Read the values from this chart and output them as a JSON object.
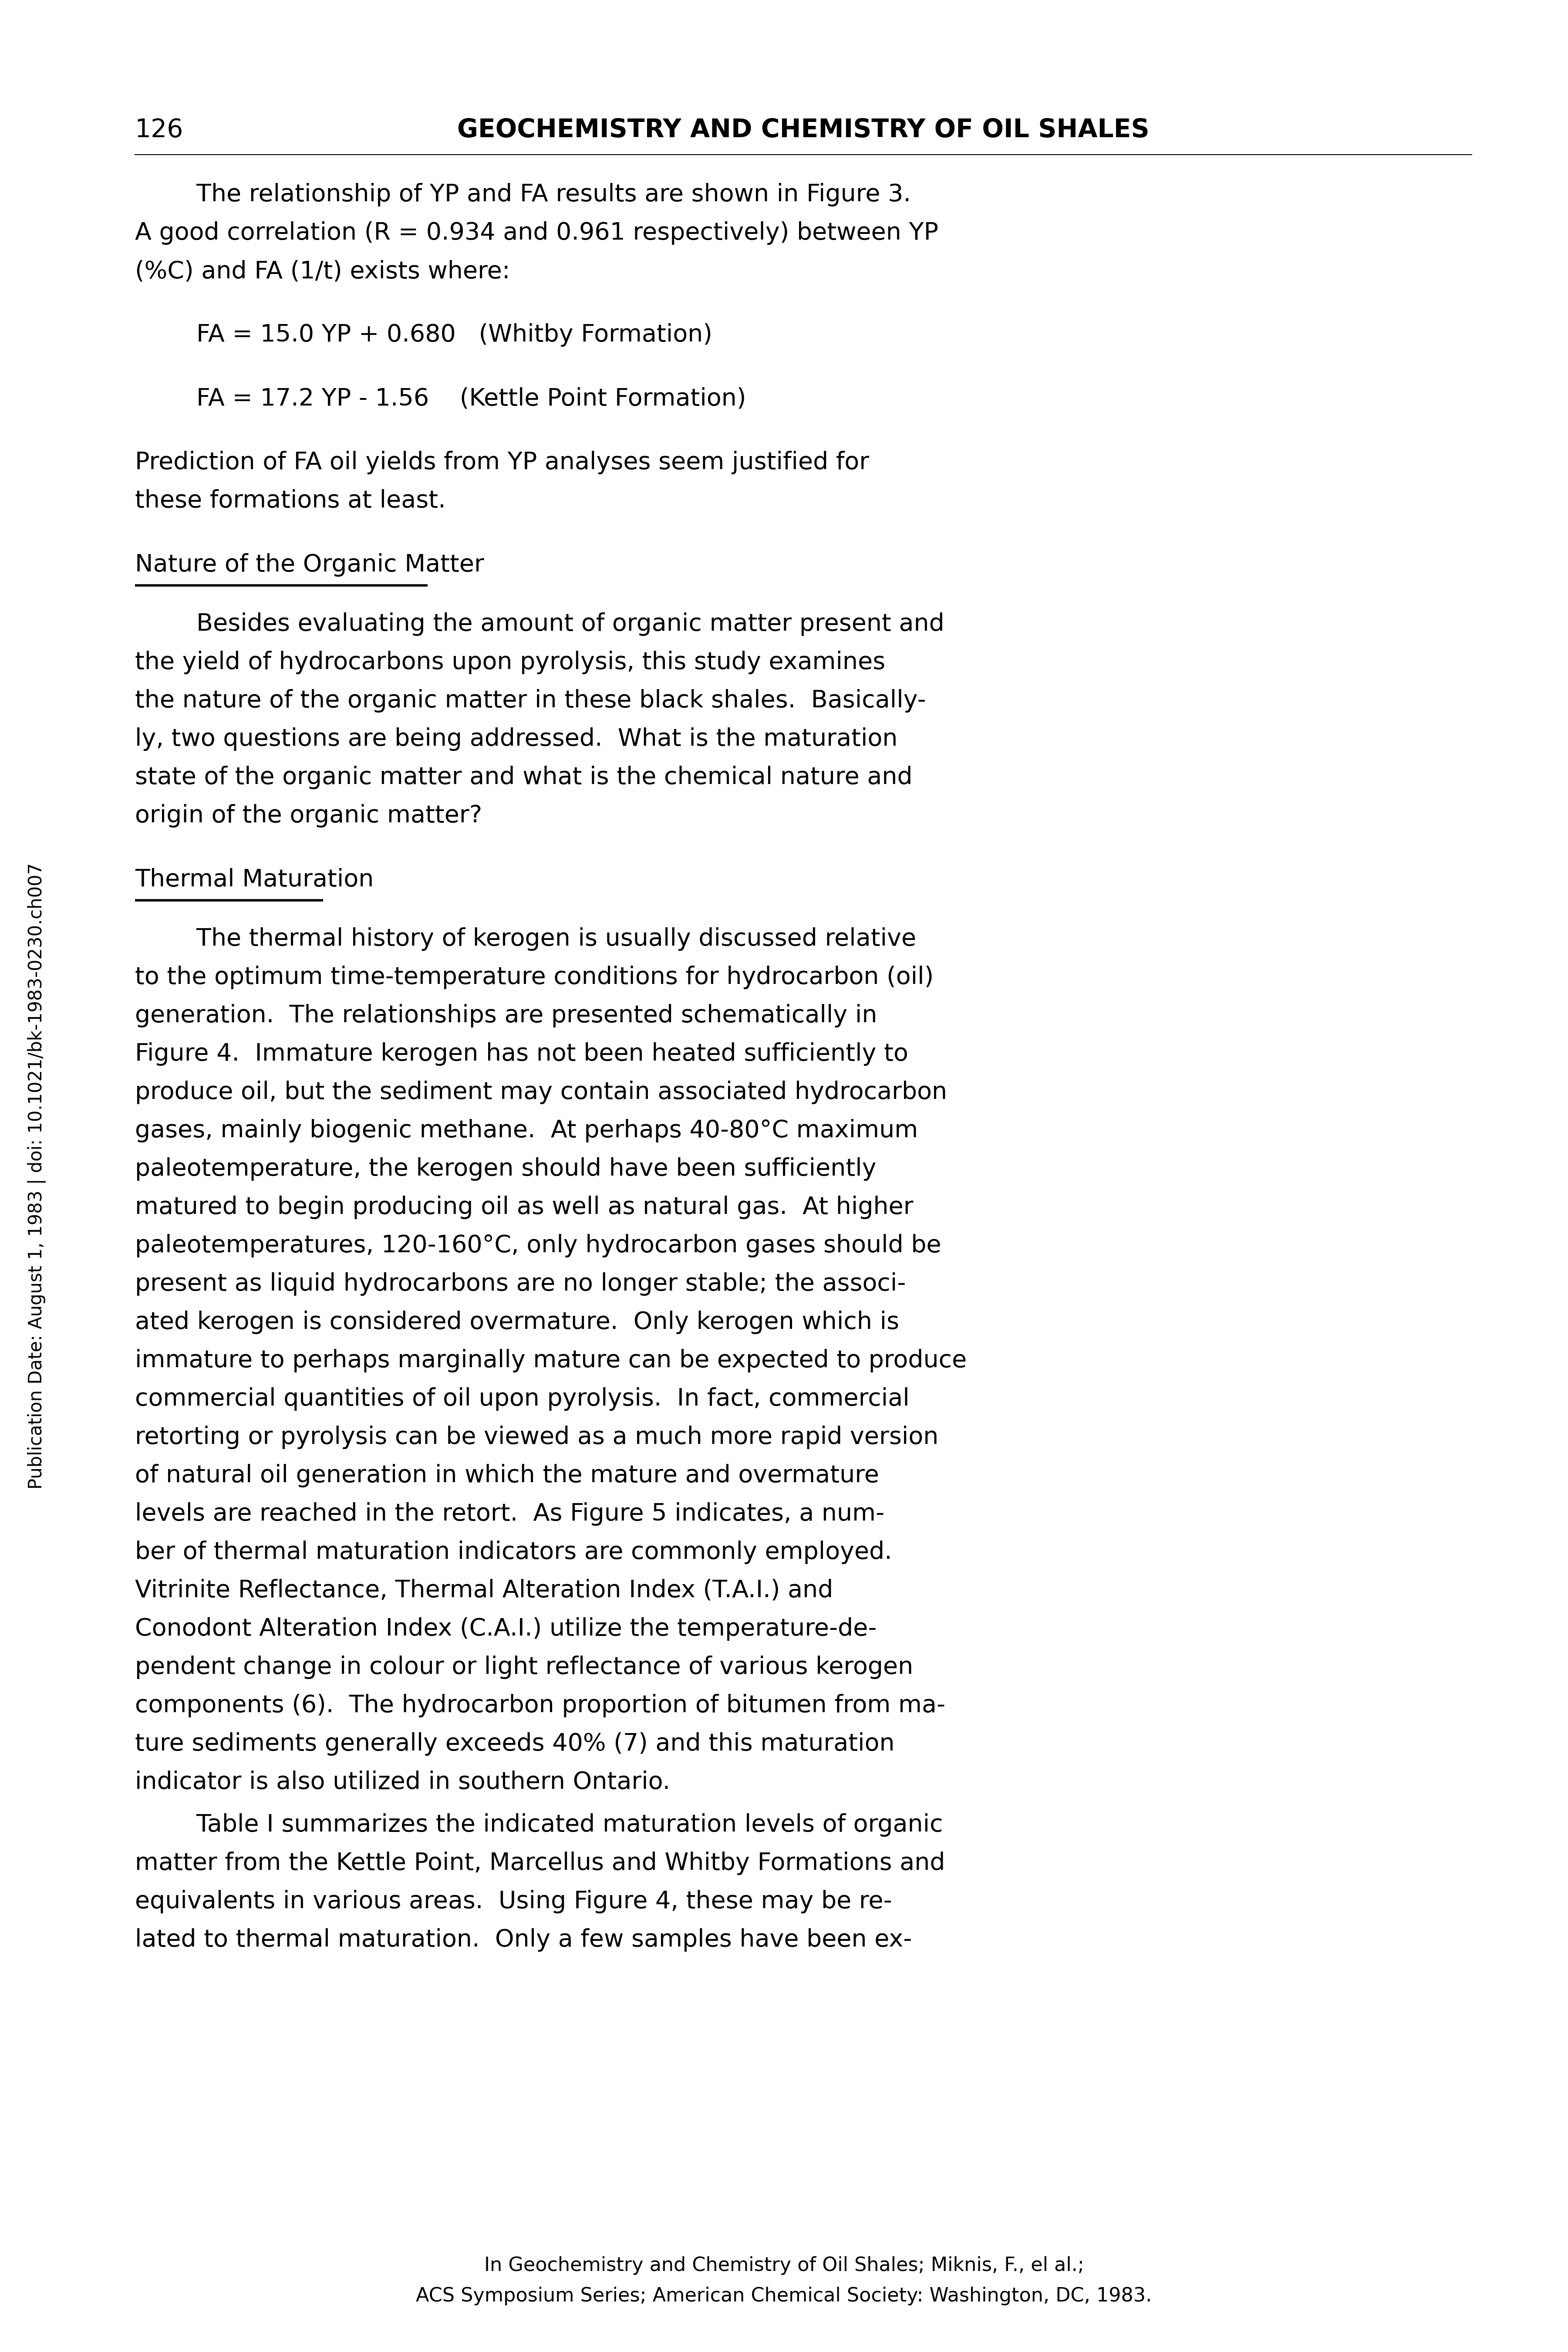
{
  "bg_color": "#ffffff",
  "text_color": "#000000",
  "page_number": "126",
  "header_title": "GEOCHEMISTRY AND CHEMISTRY OF OIL SHALES",
  "sidebar_text": "Publication Date: August 1, 1983 | doi: 10.1021/bk-1983-0230.ch007",
  "paragraphs": [
    {
      "type": "indent_paragraph",
      "lines": [
        "        The relationship of YP and FA results are shown in Figure 3.",
        "A good correlation (R = 0.934 and 0.961 respectively) between YP",
        "(%C) and FA (1/t) exists where:"
      ]
    },
    {
      "type": "blank"
    },
    {
      "type": "equation",
      "lines": [
        "        FA = 15.0 YP + 0.680   (Whitby Formation)"
      ]
    },
    {
      "type": "blank"
    },
    {
      "type": "equation",
      "lines": [
        "        FA = 17.2 YP - 1.56    (Kettle Point Formation)"
      ]
    },
    {
      "type": "blank"
    },
    {
      "type": "body",
      "lines": [
        "Prediction of FA oil yields from YP analyses seem justified for",
        "these formations at least."
      ]
    },
    {
      "type": "blank"
    },
    {
      "type": "section_heading",
      "text": "Nature of the Organic Matter"
    },
    {
      "type": "blank"
    },
    {
      "type": "indent_paragraph",
      "lines": [
        "        Besides evaluating the amount of organic matter present and",
        "the yield of hydrocarbons upon pyrolysis, this study examines",
        "the nature of the organic matter in these black shales.  Basically-",
        "ly, two questions are being addressed.  What is the maturation",
        "state of the organic matter and what is the chemical nature and",
        "origin of the organic matter?"
      ]
    },
    {
      "type": "blank"
    },
    {
      "type": "section_heading",
      "text": "Thermal Maturation"
    },
    {
      "type": "blank"
    },
    {
      "type": "indent_paragraph",
      "lines": [
        "        The thermal history of kerogen is usually discussed relative",
        "to the optimum time-temperature conditions for hydrocarbon (oil)",
        "generation.  The relationships are presented schematically in",
        "Figure 4.  Immature kerogen has not been heated sufficiently to",
        "produce oil, but the sediment may contain associated hydrocarbon",
        "gases, mainly biogenic methane.  At perhaps 40-80°C maximum",
        "paleotemperature, the kerogen should have been sufficiently",
        "matured to begin producing oil as well as natural gas.  At higher",
        "paleotemperatures, 120-160°C, only hydrocarbon gases should be",
        "present as liquid hydrocarbons are no longer stable; the associ-",
        "ated kerogen is considered overmature.  Only kerogen which is",
        "immature to perhaps marginally mature can be expected to produce",
        "commercial quantities of oil upon pyrolysis.  In fact, commercial",
        "retorting or pyrolysis can be viewed as a much more rapid version",
        "of natural oil generation in which the mature and overmature",
        "levels are reached in the retort.  As Figure 5 indicates, a num-",
        "ber of thermal maturation indicators are commonly employed.",
        "Vitrinite Reflectance, Thermal Alteration Index (T.A.I.) and",
        "Conodont Alteration Index (C.A.I.) utilize the temperature-de-",
        "pendent change in colour or light reflectance of various kerogen",
        "components (6).  The hydrocarbon proportion of bitumen from ma-",
        "ture sediments generally exceeds 40% (7) and this maturation",
        "indicator is also utilized in southern Ontario."
      ]
    },
    {
      "type": "indent_paragraph",
      "lines": [
        "        Table I summarizes the indicated maturation levels of organic",
        "matter from the Kettle Point, Marcellus and Whitby Formations and",
        "equivalents in various areas.  Using Figure 4, these may be re-",
        "lated to thermal maturation.  Only a few samples have been ex-"
      ]
    }
  ],
  "footer_line1": "In Geochemistry and Chemistry of Oil Shales; Miknis, F., el al.;",
  "footer_line2": "ACS Symposium Series; American Chemical Society: Washington, DC, 1983."
}
